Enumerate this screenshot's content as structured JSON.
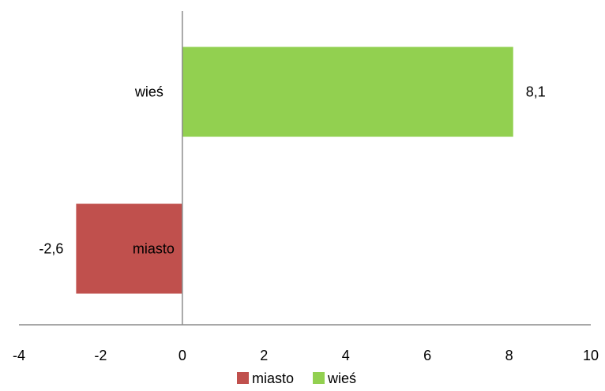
{
  "chart_data": {
    "type": "bar",
    "orientation": "horizontal",
    "categories": [
      "miasto",
      "wieś"
    ],
    "values": [
      -2.6,
      8.1
    ],
    "value_labels": [
      "-2,6",
      "8,1"
    ],
    "colors": [
      "#C0504D",
      "#92D050"
    ],
    "title": "",
    "xlabel": "",
    "ylabel": "",
    "xlim": [
      -4,
      10
    ],
    "x_ticks": [
      -4,
      -2,
      0,
      2,
      4,
      6,
      8,
      10
    ],
    "x_tick_labels": [
      "-4",
      "-2",
      "0",
      "2",
      "4",
      "6",
      "8",
      "10"
    ],
    "grid": false,
    "legend": {
      "position": "bottom",
      "entries": [
        {
          "name": "miasto",
          "color": "#C0504D"
        },
        {
          "name": "wieś",
          "color": "#92D050"
        }
      ]
    }
  }
}
